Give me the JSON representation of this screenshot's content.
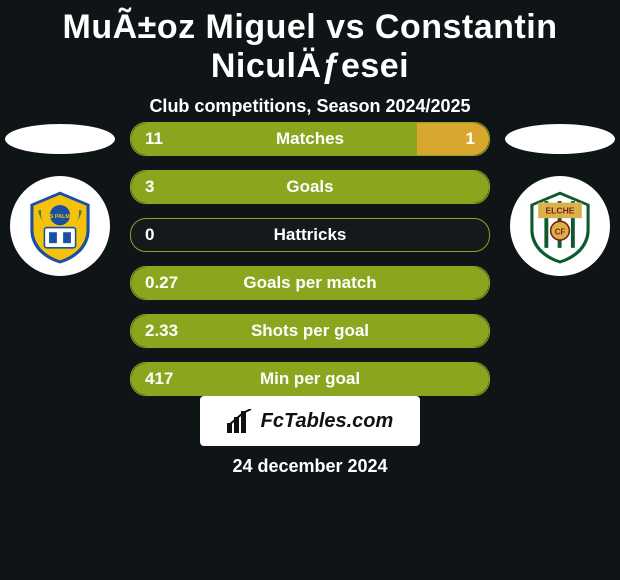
{
  "title": "MuÃ±oz Miguel vs Constantin NiculÄƒesei",
  "subtitle": "Club competitions, Season 2024/2025",
  "date": "24 december 2024",
  "footer_brand": "FcTables.com",
  "colors": {
    "left": "#8aa61f",
    "right": "#d9a72e",
    "bar_bg": "#14191c",
    "page_bg": "#0f1416",
    "text": "#ffffff"
  },
  "left_team": {
    "name": "UD Las Palmas",
    "crest_colors": {
      "primary": "#f4c20d",
      "secondary": "#1a4fa3"
    }
  },
  "right_team": {
    "name": "Elche CF",
    "crest_colors": {
      "primary": "#0c5b2f",
      "secondary": "#ffffff"
    }
  },
  "stats": [
    {
      "label": "Matches",
      "left_display": "11",
      "right_display": "1",
      "left_pct": 80,
      "right_pct": 20
    },
    {
      "label": "Goals",
      "left_display": "3",
      "right_display": "",
      "left_pct": 100,
      "right_pct": 0
    },
    {
      "label": "Hattricks",
      "left_display": "0",
      "right_display": "",
      "left_pct": 0,
      "right_pct": 0
    },
    {
      "label": "Goals per match",
      "left_display": "0.27",
      "right_display": "",
      "left_pct": 100,
      "right_pct": 0
    },
    {
      "label": "Shots per goal",
      "left_display": "2.33",
      "right_display": "",
      "left_pct": 100,
      "right_pct": 0
    },
    {
      "label": "Min per goal",
      "left_display": "417",
      "right_display": "",
      "left_pct": 100,
      "right_pct": 0
    }
  ]
}
